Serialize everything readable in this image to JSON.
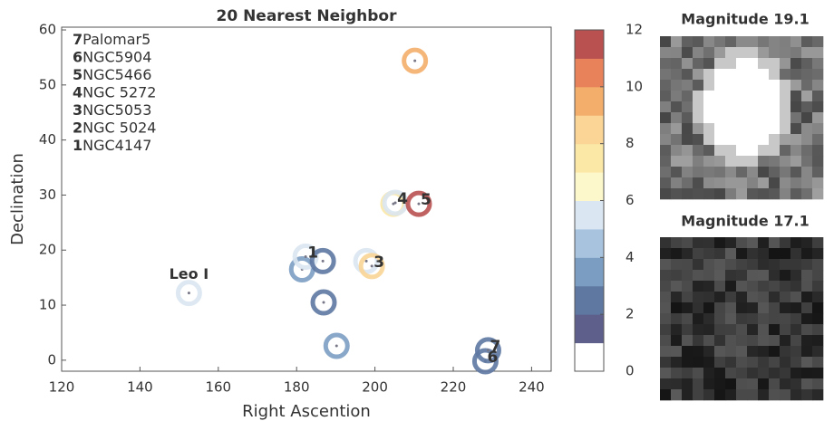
{
  "chart_data": {
    "type": "scatter",
    "title": "20 Nearest Neighbor",
    "xlabel": "Right Ascention",
    "ylabel": "Declination",
    "xlim": [
      120,
      245
    ],
    "ylim": [
      -2,
      60.5
    ],
    "xticks": [
      120,
      140,
      160,
      180,
      200,
      220,
      240
    ],
    "yticks": [
      0,
      10,
      20,
      30,
      40,
      50,
      60
    ],
    "x": [
      152.5,
      181.4,
      182.3,
      186.7,
      186.9,
      190.2,
      197.8,
      199.2,
      204.7,
      205.2,
      211.2,
      210.2,
      228.2,
      228.9
    ],
    "y": [
      12.2,
      16.5,
      18.8,
      18.0,
      10.5,
      2.6,
      18.0,
      17.1,
      28.4,
      28.6,
      28.4,
      54.4,
      -0.2,
      1.8
    ],
    "values": [
      5,
      3,
      5,
      2,
      2,
      3,
      5,
      8,
      7,
      5,
      11,
      9,
      2,
      2
    ],
    "point_labels": [
      null,
      null,
      "1",
      null,
      null,
      null,
      null,
      "3",
      null,
      "4",
      "5",
      null,
      "6",
      "7"
    ],
    "annotations": [
      {
        "text": "Leo I",
        "x": 152.5,
        "y": 15.5
      }
    ],
    "clusters": [
      {
        "id": "7",
        "name": "Palomar5"
      },
      {
        "id": "6",
        "name": "NGC5904"
      },
      {
        "id": "5",
        "name": "NGC5466"
      },
      {
        "id": "4",
        "name": "NGC 5272"
      },
      {
        "id": "3",
        "name": "NGC5053"
      },
      {
        "id": "2",
        "name": "NGC 5024"
      },
      {
        "id": "1",
        "name": "NGC4147"
      }
    ],
    "colorbar": {
      "colors": [
        "#ffffff",
        "#5f5f8c",
        "#5e78a2",
        "#7c9dc2",
        "#a7c3de",
        "#dae6f1",
        "#fdf8cb",
        "#fbe8a6",
        "#fad596",
        "#f4ae6b",
        "#e7825a",
        "#b85150"
      ],
      "lim": [
        0,
        12
      ],
      "ticks": [
        0,
        2,
        4,
        6,
        8,
        10,
        12
      ]
    }
  },
  "panels": [
    {
      "title": "Magnitude 19.1"
    },
    {
      "title": "Magnitude 17.1"
    }
  ]
}
